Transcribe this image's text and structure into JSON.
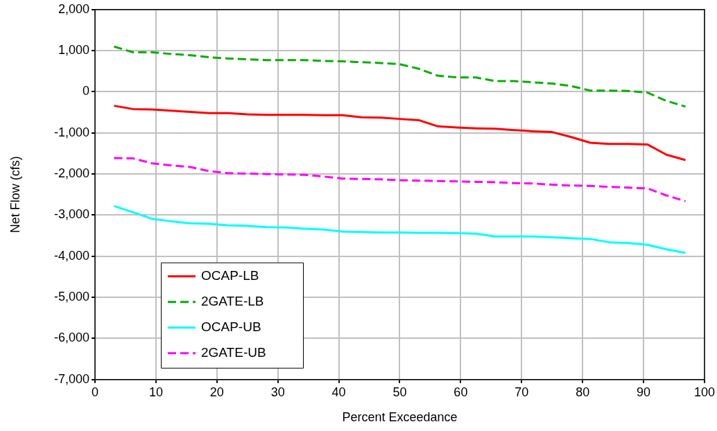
{
  "chart_data": {
    "type": "line",
    "xlabel": "Percent Exceedance",
    "ylabel": "Net Flow (cfs)",
    "x": [
      3.125,
      6.25,
      9.375,
      12.5,
      15.625,
      18.75,
      21.875,
      25,
      28.125,
      31.25,
      34.375,
      37.5,
      40.625,
      43.75,
      46.875,
      50,
      53.125,
      56.25,
      59.375,
      62.5,
      65.625,
      68.75,
      71.875,
      75,
      78.125,
      81.25,
      84.375,
      87.5,
      90.625,
      93.75,
      96.875
    ],
    "series": [
      {
        "name": "OCAP-LB",
        "color": "#ff0000",
        "line_style": "solid",
        "values": [
          -340,
          -420,
          -430,
          -460,
          -490,
          -520,
          -520,
          -550,
          -560,
          -560,
          -560,
          -570,
          -570,
          -620,
          -630,
          -660,
          -690,
          -840,
          -870,
          -890,
          -900,
          -930,
          -960,
          -980,
          -1100,
          -1240,
          -1270,
          -1270,
          -1280,
          -1530,
          -1660
        ]
      },
      {
        "name": "2GATE-LB",
        "color": "#00b000",
        "line_style": "dashed",
        "values": [
          1100,
          960,
          960,
          920,
          890,
          840,
          810,
          790,
          770,
          770,
          770,
          750,
          740,
          720,
          700,
          670,
          560,
          390,
          350,
          350,
          260,
          260,
          230,
          200,
          140,
          30,
          30,
          20,
          -20,
          -220,
          -360
        ]
      },
      {
        "name": "OCAP-UB",
        "color": "#00ffff",
        "line_style": "solid",
        "values": [
          -2780,
          -2930,
          -3090,
          -3150,
          -3200,
          -3210,
          -3250,
          -3260,
          -3290,
          -3300,
          -3330,
          -3350,
          -3400,
          -3410,
          -3420,
          -3420,
          -3430,
          -3430,
          -3440,
          -3450,
          -3520,
          -3520,
          -3520,
          -3540,
          -3560,
          -3580,
          -3660,
          -3680,
          -3720,
          -3830,
          -3920
        ]
      },
      {
        "name": "2GATE-UB",
        "color": "#ff00ff",
        "line_style": "dashed",
        "values": [
          -1610,
          -1620,
          -1740,
          -1790,
          -1830,
          -1930,
          -1980,
          -1990,
          -2000,
          -2010,
          -2020,
          -2060,
          -2110,
          -2120,
          -2130,
          -2150,
          -2160,
          -2170,
          -2180,
          -2190,
          -2200,
          -2220,
          -2230,
          -2260,
          -2280,
          -2290,
          -2310,
          -2330,
          -2350,
          -2520,
          -2660
        ]
      }
    ],
    "xlim": [
      0,
      100
    ],
    "xticks": [
      0,
      10,
      20,
      30,
      40,
      50,
      60,
      70,
      80,
      90,
      100
    ],
    "ylim": [
      -7000,
      2000
    ],
    "yticks": [
      {
        "value": -7000,
        "label": "-7,000"
      },
      {
        "value": -6000,
        "label": "-6,000"
      },
      {
        "value": -5000,
        "label": "-5,000"
      },
      {
        "value": -4000,
        "label": "-4,000"
      },
      {
        "value": -3000,
        "label": "-3,000"
      },
      {
        "value": -2000,
        "label": "-2,000"
      },
      {
        "value": -1000,
        "label": "-1,000"
      },
      {
        "value": 0,
        "label": "0"
      },
      {
        "value": 1000,
        "label": "1,000"
      },
      {
        "value": 2000,
        "label": "2,000"
      }
    ],
    "grid": true,
    "legend": "bottom left",
    "marker": "none"
  }
}
